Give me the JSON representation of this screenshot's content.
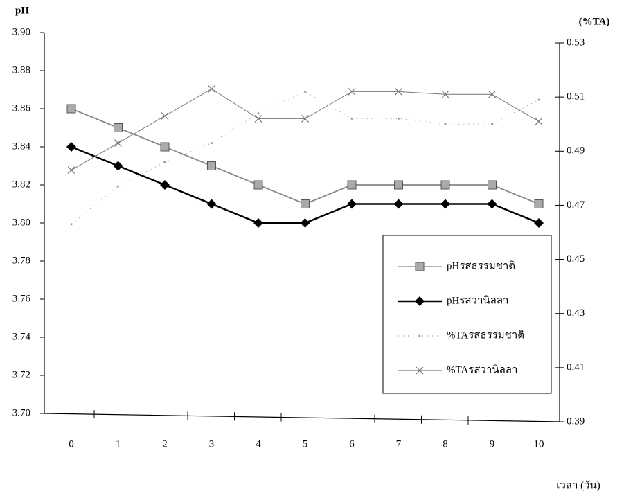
{
  "chart_data": {
    "type": "line",
    "y_label": "pH",
    "y2_label": "(%TA)",
    "x_label": "เวลา (วัน)",
    "categories": [
      "0",
      "1",
      "2",
      "3",
      "4",
      "5",
      "6",
      "7",
      "8",
      "9",
      "10"
    ],
    "ylim": [
      3.7,
      3.9
    ],
    "yticks": [
      {
        "value": 3.7,
        "label": "3.70"
      },
      3.72,
      3.74,
      3.76,
      3.78,
      {
        "value": 3.8,
        "label": "3.80"
      },
      3.82,
      3.84,
      3.86,
      3.88,
      {
        "value": 3.9,
        "label": "3.90"
      }
    ],
    "y2lim": [
      0.39,
      0.53
    ],
    "y2ticks": [
      0.39,
      0.41,
      0.43,
      0.45,
      0.47,
      0.49,
      0.51,
      0.53
    ],
    "series": [
      {
        "name": "pHรสธรรมชาติ",
        "color": "#888888",
        "marker": "square",
        "values": [
          3.86,
          3.85,
          3.84,
          3.83,
          3.82,
          3.81,
          3.82,
          3.82,
          3.82,
          3.82,
          3.81
        ]
      },
      {
        "name": "pHรสวานิลลา",
        "color": "#000000",
        "marker": "diamond",
        "values": [
          3.84,
          3.83,
          3.82,
          3.81,
          3.8,
          3.8,
          3.81,
          3.81,
          3.81,
          3.81,
          3.8
        ]
      },
      {
        "name": "%TAรสธรรมชาติ",
        "color": "#999999",
        "marker": "dot",
        "axis": "y2",
        "values": [
          0.463,
          0.477,
          0.486,
          0.493,
          0.504,
          0.512,
          0.502,
          0.502,
          0.5,
          0.5,
          0.509
        ]
      },
      {
        "name": "%TAรสวานิลลา",
        "color": "#777777",
        "marker": "x",
        "axis": "y2",
        "values": [
          0.483,
          0.493,
          0.503,
          0.513,
          0.502,
          0.502,
          0.512,
          0.512,
          0.511,
          0.511,
          0.501
        ]
      }
    ]
  }
}
